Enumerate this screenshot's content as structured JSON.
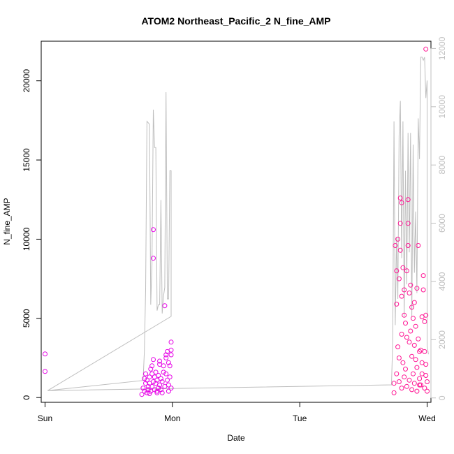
{
  "chart_data": {
    "type": "scatter",
    "title": "ATOM2 Northeast_Pacific_2 N_fine_AMP",
    "xlabel": "Date",
    "ylabel": "N_fine_AMP",
    "x_ticks": [
      "Sun",
      "Mon",
      "Tue",
      "Wed"
    ],
    "x_range_days": [
      -0.03,
      3.03
    ],
    "ylim": [
      -300,
      22500
    ],
    "y_ticks": [
      0,
      5000,
      10000,
      15000,
      20000
    ],
    "y2lim": [
      -150,
      12250
    ],
    "y2_ticks": [
      0,
      2000,
      4000,
      6000,
      8000,
      10000,
      12000
    ],
    "grid": false,
    "legend": "none",
    "colors": {
      "line": "#bebebe",
      "points_left": "#e600e6",
      "points_right": "#ff1493",
      "right_axis": "#bfbfbf"
    },
    "series": [
      {
        "kind": "points",
        "axis": "left",
        "points": [
          [
            0.0,
            2750
          ],
          [
            0.0,
            1650
          ],
          [
            0.77,
            600
          ],
          [
            0.78,
            1200
          ],
          [
            0.78,
            400
          ],
          [
            0.79,
            1500
          ],
          [
            0.79,
            900
          ],
          [
            0.8,
            300
          ],
          [
            0.8,
            1100
          ],
          [
            0.81,
            700
          ],
          [
            0.81,
            500
          ],
          [
            0.82,
            1300
          ],
          [
            0.82,
            900
          ],
          [
            0.83,
            1800
          ],
          [
            0.83,
            400
          ],
          [
            0.84,
            2000
          ],
          [
            0.84,
            1500
          ],
          [
            0.84,
            700
          ],
          [
            0.85,
            2400
          ],
          [
            0.85,
            1000
          ],
          [
            0.85,
            10600
          ],
          [
            0.85,
            8800
          ],
          [
            0.86,
            1300
          ],
          [
            0.86,
            500
          ],
          [
            0.87,
            900
          ],
          [
            0.87,
            1600
          ],
          [
            0.88,
            400
          ],
          [
            0.88,
            1100
          ],
          [
            0.89,
            600
          ],
          [
            0.89,
            1400
          ],
          [
            0.9,
            2300
          ],
          [
            0.9,
            2100
          ],
          [
            0.9,
            800
          ],
          [
            0.91,
            500
          ],
          [
            0.91,
            1200
          ],
          [
            0.92,
            300
          ],
          [
            0.92,
            1000
          ],
          [
            0.93,
            1600
          ],
          [
            0.93,
            2000
          ],
          [
            0.94,
            5800
          ],
          [
            0.94,
            700
          ],
          [
            0.95,
            2700
          ],
          [
            0.95,
            2500
          ],
          [
            0.95,
            1500
          ],
          [
            0.96,
            2900
          ],
          [
            0.96,
            1100
          ],
          [
            0.97,
            2200
          ],
          [
            0.97,
            800
          ],
          [
            0.98,
            1300
          ],
          [
            0.98,
            2000
          ],
          [
            0.99,
            3000
          ],
          [
            0.99,
            3500
          ],
          [
            0.99,
            2700
          ],
          [
            0.99,
            600
          ],
          [
            0.76,
            200
          ],
          [
            0.82,
            250
          ],
          [
            0.88,
            300
          ],
          [
            0.97,
            400
          ]
        ]
      },
      {
        "kind": "points",
        "axis": "left",
        "points": [
          [
            2.75,
            9600
          ],
          [
            2.76,
            8000
          ],
          [
            2.76,
            5900
          ],
          [
            2.77,
            10000
          ],
          [
            2.77,
            3200
          ],
          [
            2.78,
            7500
          ],
          [
            2.78,
            2500
          ],
          [
            2.79,
            12600
          ],
          [
            2.79,
            11000
          ],
          [
            2.79,
            9300
          ],
          [
            2.8,
            12300
          ],
          [
            2.8,
            6400
          ],
          [
            2.8,
            4000
          ],
          [
            2.81,
            8200
          ],
          [
            2.81,
            2200
          ],
          [
            2.82,
            6800
          ],
          [
            2.82,
            5200
          ],
          [
            2.83,
            4700
          ],
          [
            2.83,
            1800
          ],
          [
            2.84,
            3800
          ],
          [
            2.84,
            8000
          ],
          [
            2.85,
            12500
          ],
          [
            2.85,
            11000
          ],
          [
            2.85,
            9600
          ],
          [
            2.86,
            6600
          ],
          [
            2.86,
            3500
          ],
          [
            2.87,
            7100
          ],
          [
            2.87,
            4200
          ],
          [
            2.88,
            5700
          ],
          [
            2.88,
            2600
          ],
          [
            2.89,
            5000
          ],
          [
            2.89,
            1500
          ],
          [
            2.9,
            3300
          ],
          [
            2.9,
            6000
          ],
          [
            2.91,
            4500
          ],
          [
            2.91,
            2400
          ],
          [
            2.92,
            6900
          ],
          [
            2.92,
            1900
          ],
          [
            2.93,
            3700
          ],
          [
            2.93,
            9600
          ],
          [
            2.94,
            2900
          ],
          [
            2.94,
            1200
          ],
          [
            2.95,
            3000
          ],
          [
            2.95,
            800
          ],
          [
            2.96,
            2200
          ],
          [
            2.96,
            5100
          ],
          [
            2.97,
            7700
          ],
          [
            2.97,
            6800
          ],
          [
            2.98,
            4800
          ],
          [
            2.98,
            2900
          ],
          [
            2.99,
            22000
          ],
          [
            2.99,
            2100
          ],
          [
            2.99,
            5200
          ],
          [
            2.99,
            1400
          ],
          [
            2.74,
            300
          ],
          [
            2.74,
            900
          ],
          [
            2.76,
            1500
          ],
          [
            2.78,
            1000
          ],
          [
            2.8,
            600
          ],
          [
            2.82,
            1300
          ],
          [
            2.84,
            700
          ],
          [
            2.86,
            1100
          ],
          [
            2.88,
            500
          ],
          [
            2.9,
            900
          ],
          [
            2.92,
            400
          ],
          [
            2.94,
            800
          ],
          [
            2.96,
            1500
          ],
          [
            2.98,
            600
          ],
          [
            3.0,
            1000
          ],
          [
            3.0,
            400
          ]
        ]
      },
      {
        "kind": "line",
        "axis": "right",
        "points": [
          [
            0.02,
            250
          ],
          [
            0.99,
            2800
          ],
          [
            0.99,
            3100
          ],
          [
            0.99,
            7800
          ],
          [
            0.98,
            7800
          ],
          [
            0.97,
            3400
          ],
          [
            0.96,
            3400
          ],
          [
            0.96,
            3900
          ],
          [
            0.95,
            10500
          ],
          [
            0.94,
            3800
          ],
          [
            0.93,
            3500
          ],
          [
            0.92,
            2900
          ],
          [
            0.91,
            6800
          ],
          [
            0.9,
            3200
          ],
          [
            0.89,
            3200
          ],
          [
            0.88,
            3000
          ],
          [
            0.87,
            8600
          ],
          [
            0.86,
            8600
          ],
          [
            0.85,
            9900
          ],
          [
            0.84,
            4600
          ],
          [
            0.83,
            3200
          ],
          [
            0.82,
            9400
          ],
          [
            0.8,
            9500
          ],
          [
            0.79,
            3700
          ],
          [
            0.78,
            1600
          ],
          [
            0.77,
            600
          ],
          [
            0.02,
            250
          ],
          [
            2.72,
            450
          ],
          [
            2.73,
            2000
          ],
          [
            2.74,
            9500
          ],
          [
            2.75,
            2500
          ],
          [
            2.76,
            5500
          ],
          [
            2.77,
            3400
          ],
          [
            2.78,
            9000
          ],
          [
            2.79,
            10200
          ],
          [
            2.8,
            4800
          ],
          [
            2.81,
            9500
          ],
          [
            2.82,
            2800
          ],
          [
            2.83,
            7800
          ],
          [
            2.84,
            3900
          ],
          [
            2.85,
            9100
          ],
          [
            2.86,
            5000
          ],
          [
            2.87,
            9100
          ],
          [
            2.88,
            2800
          ],
          [
            2.89,
            8700
          ],
          [
            2.9,
            4300
          ],
          [
            2.91,
            6400
          ],
          [
            2.92,
            3600
          ],
          [
            2.93,
            9600
          ],
          [
            2.94,
            8200
          ],
          [
            2.95,
            11700
          ],
          [
            2.96,
            11700
          ],
          [
            2.97,
            11600
          ],
          [
            2.98,
            11700
          ],
          [
            2.99,
            10300
          ],
          [
            3.0,
            10900
          ],
          [
            3.0,
            1800
          ],
          [
            3.01,
            1500
          ]
        ]
      }
    ]
  }
}
